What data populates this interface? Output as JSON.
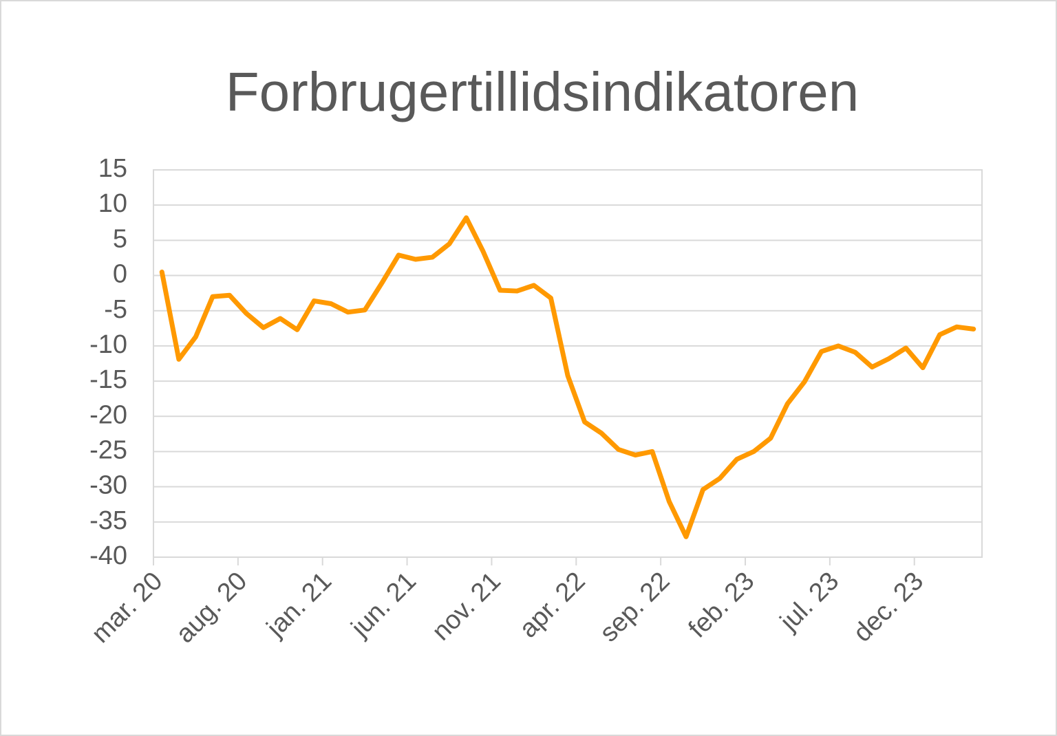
{
  "chart_data": {
    "type": "line",
    "title": "Forbrugertillidsindikatoren",
    "categories": [
      "mar. 20",
      null,
      null,
      null,
      null,
      "aug. 20",
      null,
      null,
      null,
      null,
      "jan. 21",
      null,
      null,
      null,
      null,
      "jun. 21",
      null,
      null,
      null,
      null,
      "nov. 21",
      null,
      null,
      null,
      null,
      "apr. 22",
      null,
      null,
      null,
      null,
      "sep. 22",
      null,
      null,
      null,
      null,
      "feb. 23",
      null,
      null,
      null,
      null,
      "jul. 23",
      null,
      null,
      null,
      null,
      "dec. 23",
      null,
      null,
      null
    ],
    "values": [
      0.5,
      -11.9,
      -8.7,
      -3.0,
      -2.8,
      -5.4,
      -7.4,
      -6.1,
      -7.7,
      -3.6,
      -4.0,
      -5.2,
      -4.9,
      -1.1,
      2.9,
      2.3,
      2.6,
      4.5,
      8.2,
      3.4,
      -2.1,
      -2.2,
      -1.4,
      -3.2,
      -14.2,
      -20.8,
      -22.4,
      -24.7,
      -25.5,
      -25.0,
      -32.1,
      -37.1,
      -30.4,
      -28.8,
      -26.1,
      -25.0,
      -23.1,
      -18.2,
      -15.1,
      -10.8,
      -10.0,
      -10.9,
      -13.0,
      -11.8,
      -10.3,
      -13.1,
      -8.4,
      -7.3,
      -7.6
    ],
    "color": "#ff9900",
    "ylim": [
      -40,
      15
    ],
    "yticks": [
      -40,
      -35,
      -30,
      -25,
      -20,
      -15,
      -10,
      -5,
      0,
      5,
      10,
      15
    ],
    "grid": true
  }
}
